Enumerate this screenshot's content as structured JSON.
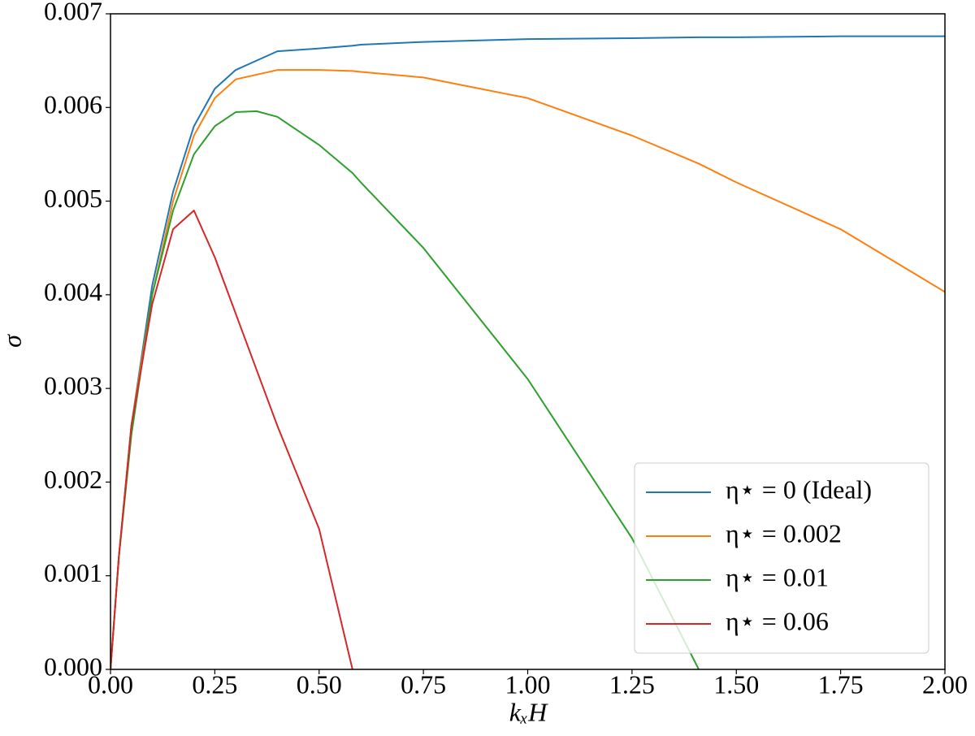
{
  "chart_data": {
    "type": "line",
    "xlabel": "kₓH",
    "ylabel": "σ",
    "x": [
      0,
      0.02,
      0.05,
      0.1,
      0.15,
      0.2,
      0.25,
      0.3,
      0.35,
      0.4,
      0.5,
      0.58,
      0.6,
      0.75,
      1.0,
      1.25,
      1.41,
      1.5,
      1.75,
      2.0
    ],
    "series": [
      {
        "name": "η⋆ = 0 (Ideal)",
        "color": "#1f77b4",
        "values": [
          0,
          0.0012,
          0.0026,
          0.0041,
          0.0051,
          0.0058,
          0.0062,
          0.0064,
          0.0065,
          0.0066,
          0.00663,
          0.00666,
          0.00667,
          0.0067,
          0.00673,
          0.00674,
          0.00675,
          0.00675,
          0.00676,
          0.00676
        ]
      },
      {
        "name": "η⋆ = 0.002",
        "color": "#ff7f0e",
        "values": [
          0,
          0.0012,
          0.0026,
          0.004,
          0.005,
          0.0057,
          0.0061,
          0.0063,
          0.00635,
          0.0064,
          0.0064,
          0.00639,
          0.00638,
          0.00632,
          0.0061,
          0.0057,
          0.0054,
          0.0052,
          0.0047,
          0.00403
        ]
      },
      {
        "name": "η⋆ = 0.01",
        "color": "#2ca02c",
        "values": [
          0,
          0.0012,
          0.0025,
          0.004,
          0.0049,
          0.0055,
          0.0058,
          0.00595,
          0.00596,
          0.0059,
          0.0056,
          0.0053,
          0.0052,
          0.0045,
          0.0031,
          0.0014,
          0,
          null,
          null,
          null
        ]
      },
      {
        "name": "η⋆ = 0.06",
        "color": "#d62728",
        "values": [
          0,
          0.0012,
          0.0026,
          0.0039,
          0.0047,
          0.0049,
          0.0044,
          0.0038,
          0.0032,
          0.0026,
          0.0015,
          0,
          null,
          null,
          null,
          null,
          null,
          null,
          null,
          null
        ]
      }
    ],
    "xlim": [
      0,
      2
    ],
    "ylim": [
      0,
      0.007
    ],
    "xticks": [
      {
        "value": 0,
        "label": "0.00"
      },
      {
        "value": 0.25,
        "label": "0.25"
      },
      {
        "value": 0.5,
        "label": "0.50"
      },
      {
        "value": 0.75,
        "label": "0.75"
      },
      {
        "value": 1,
        "label": "1.00"
      },
      {
        "value": 1.25,
        "label": "1.25"
      },
      {
        "value": 1.5,
        "label": "1.50"
      },
      {
        "value": 1.75,
        "label": "1.75"
      },
      {
        "value": 2,
        "label": "2.00"
      }
    ],
    "yticks": [
      {
        "value": 0,
        "label": "0.000"
      },
      {
        "value": 0.001,
        "label": "0.001"
      },
      {
        "value": 0.002,
        "label": "0.002"
      },
      {
        "value": 0.003,
        "label": "0.003"
      },
      {
        "value": 0.004,
        "label": "0.004"
      },
      {
        "value": 0.005,
        "label": "0.005"
      },
      {
        "value": 0.006,
        "label": "0.006"
      },
      {
        "value": 0.007,
        "label": "0.007"
      }
    ],
    "legend": "lower right",
    "grid": false
  }
}
